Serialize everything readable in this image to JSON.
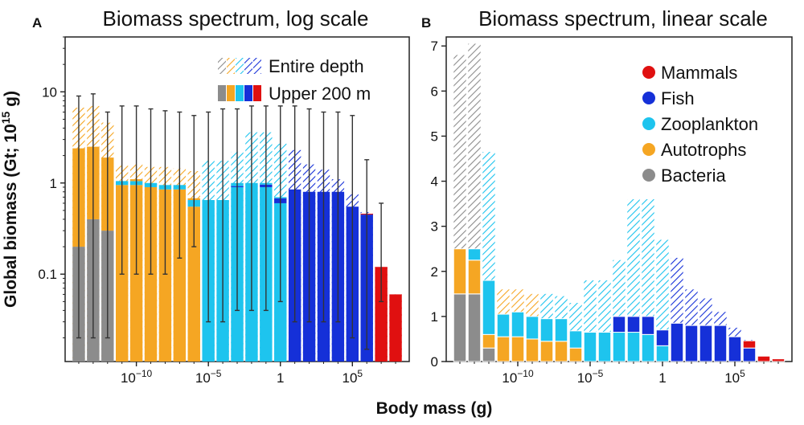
{
  "colors": {
    "Mammals": "#e01010",
    "Fish": "#1530d8",
    "Zooplankton": "#1ec4ee",
    "Autotrophs": "#f5a623",
    "Bacteria": "#8c8c8c"
  },
  "panels": {
    "A": {
      "letter": "A",
      "title": "Biomass spectrum, log scale"
    },
    "B": {
      "letter": "B",
      "title": "Biomass spectrum, linear scale"
    }
  },
  "axes": {
    "ylabel_main": "Global biomass (Gt; 10",
    "ylabel_sup": "15",
    "ylabel_end": " g)",
    "xlabel": "Body mass (g)"
  },
  "legendA": {
    "entire_depth": "Entire depth",
    "upper_200": "Upper 200 m"
  },
  "legendB": [
    "Mammals",
    "Fish",
    "Zooplankton",
    "Autotrophs",
    "Bacteria"
  ],
  "chart_data": [
    {
      "type": "bar",
      "panel": "A",
      "title": "Biomass spectrum, log scale",
      "yscale": "log",
      "ylim": [
        0.011,
        40
      ],
      "yticks": [
        {
          "label": "0.1",
          "value": 0.1
        },
        {
          "label": "1",
          "value": 1
        },
        {
          "label": "10",
          "value": 10
        }
      ],
      "xticks": [
        {
          "label": "10",
          "exp": "−10",
          "log10_mass": -10
        },
        {
          "label": "10",
          "exp": "−5",
          "log10_mass": -5
        },
        {
          "label": "1",
          "exp": "",
          "log10_mass": 0
        },
        {
          "label": "10",
          "exp": "5",
          "log10_mass": 5
        }
      ],
      "log10_mass_bins": [
        -14,
        -13,
        -12,
        -11,
        -10,
        -9,
        -8,
        -7,
        -6,
        -5,
        -4,
        -3,
        -2,
        -1,
        0,
        1,
        2,
        3,
        4,
        5,
        6,
        7,
        8
      ],
      "series": [
        {
          "name": "Bacteria",
          "values": [
            0.2,
            0.4,
            0.3,
            0,
            0,
            0,
            0,
            0,
            0,
            0,
            0,
            0,
            0,
            0,
            0,
            0,
            0,
            0,
            0,
            0,
            0,
            0,
            0
          ]
        },
        {
          "name": "Autotrophs",
          "values": [
            2.2,
            2.1,
            1.6,
            0.95,
            0.95,
            0.9,
            0.85,
            0.85,
            0.55,
            0,
            0,
            0,
            0,
            0,
            0,
            0,
            0,
            0,
            0,
            0,
            0,
            0,
            0
          ]
        },
        {
          "name": "Zooplankton",
          "values": [
            0,
            0.02,
            0,
            0.1,
            0.1,
            0.1,
            0.1,
            0.1,
            0.1,
            0.65,
            0.65,
            0.9,
            1.0,
            0.9,
            0.6,
            0,
            0,
            0,
            0,
            0,
            0,
            0,
            0
          ]
        },
        {
          "name": "Fish",
          "values": [
            0,
            0,
            0,
            0,
            0,
            0,
            0,
            0,
            0,
            0,
            0,
            0.025,
            0.04,
            0.06,
            0.08,
            0.85,
            0.8,
            0.8,
            0.8,
            0.55,
            0.45,
            0,
            0
          ]
        },
        {
          "name": "Mammals",
          "values": [
            0,
            0,
            0,
            0,
            0,
            0,
            0,
            0,
            0,
            0,
            0,
            0,
            0,
            0,
            0,
            0,
            0,
            0,
            0,
            0,
            0.04,
            0.12,
            0.06
          ]
        }
      ],
      "upper_200m_total": [
        2.4,
        2.5,
        1.9,
        1.05,
        1.1,
        1.0,
        0.95,
        0.95,
        0.68,
        0.65,
        0.65,
        1.0,
        1.0,
        1.0,
        0.7,
        0.85,
        0.8,
        0.8,
        0.8,
        0.55,
        0.46,
        0.12,
        0.06
      ],
      "entire_depth_total": [
        6.7,
        7.0,
        4.6,
        1.55,
        1.6,
        1.5,
        1.5,
        1.45,
        1.35,
        1.75,
        1.75,
        2.2,
        3.6,
        3.6,
        2.7,
        2.3,
        1.6,
        1.4,
        1.1,
        0.75,
        0.48,
        0.12,
        0.06
      ],
      "error_low": [
        0.02,
        0.02,
        0.02,
        0.1,
        0.1,
        0.1,
        0.1,
        0.15,
        0.2,
        0.03,
        0.03,
        0.04,
        0.04,
        0.04,
        0.05,
        0.03,
        0.03,
        0.03,
        0.03,
        0.02,
        0.015,
        0.05,
        0
      ],
      "error_high": [
        9,
        9.5,
        6,
        7,
        7,
        6.5,
        6.2,
        6,
        5.5,
        6,
        6.5,
        6.5,
        7,
        7,
        7,
        7,
        6.5,
        6,
        6,
        5.5,
        1.8,
        0.6,
        0
      ],
      "legend": "top-right"
    },
    {
      "type": "bar",
      "panel": "B",
      "title": "Biomass spectrum, linear scale",
      "yscale": "linear",
      "ylim": [
        0,
        7.2
      ],
      "yticks": [
        0,
        1,
        2,
        3,
        4,
        5,
        6,
        7
      ],
      "xticks": [
        {
          "label": "10",
          "exp": "−10",
          "log10_mass": -10
        },
        {
          "label": "10",
          "exp": "−5",
          "log10_mass": -5
        },
        {
          "label": "1",
          "exp": "",
          "log10_mass": 0
        },
        {
          "label": "10",
          "exp": "5",
          "log10_mass": 5
        }
      ],
      "log10_mass_bins": [
        -14,
        -13,
        -12,
        -11,
        -10,
        -9,
        -8,
        -7,
        -6,
        -5,
        -4,
        -3,
        -2,
        -1,
        0,
        1,
        2,
        3,
        4,
        5,
        6,
        7,
        8
      ],
      "series": [
        {
          "name": "Bacteria",
          "values": [
            1.5,
            1.5,
            0.3,
            0,
            0,
            0,
            0,
            0,
            0,
            0,
            0,
            0,
            0,
            0,
            0,
            0,
            0,
            0,
            0,
            0,
            0,
            0,
            0
          ]
        },
        {
          "name": "Autotrophs",
          "values": [
            1.0,
            0.75,
            0.3,
            0.55,
            0.55,
            0.5,
            0.45,
            0.45,
            0.3,
            0,
            0,
            0,
            0,
            0,
            0,
            0,
            0,
            0,
            0,
            0,
            0,
            0,
            0
          ]
        },
        {
          "name": "Zooplankton",
          "values": [
            0,
            0.25,
            1.2,
            0.5,
            0.55,
            0.5,
            0.5,
            0.5,
            0.38,
            0.65,
            0.65,
            0.65,
            0.65,
            0.6,
            0.35,
            0,
            0,
            0,
            0,
            0,
            0,
            0,
            0
          ]
        },
        {
          "name": "Fish",
          "values": [
            0,
            0,
            0,
            0,
            0,
            0,
            0,
            0,
            0,
            0,
            0,
            0.35,
            0.35,
            0.4,
            0.35,
            0.85,
            0.8,
            0.8,
            0.8,
            0.55,
            0.3,
            0,
            0
          ]
        },
        {
          "name": "Mammals",
          "values": [
            0,
            0,
            0,
            0,
            0,
            0,
            0,
            0,
            0,
            0,
            0,
            0,
            0,
            0,
            0,
            0,
            0,
            0,
            0,
            0,
            0.16,
            0.12,
            0.06
          ]
        }
      ],
      "entire_depth_total": [
        6.8,
        7.05,
        4.65,
        1.6,
        1.6,
        1.5,
        1.5,
        1.45,
        1.3,
        1.8,
        1.8,
        2.25,
        3.6,
        3.6,
        2.7,
        2.3,
        1.6,
        1.4,
        1.1,
        0.75,
        0.48,
        0.12,
        0.06
      ],
      "legend": "top-right"
    }
  ]
}
